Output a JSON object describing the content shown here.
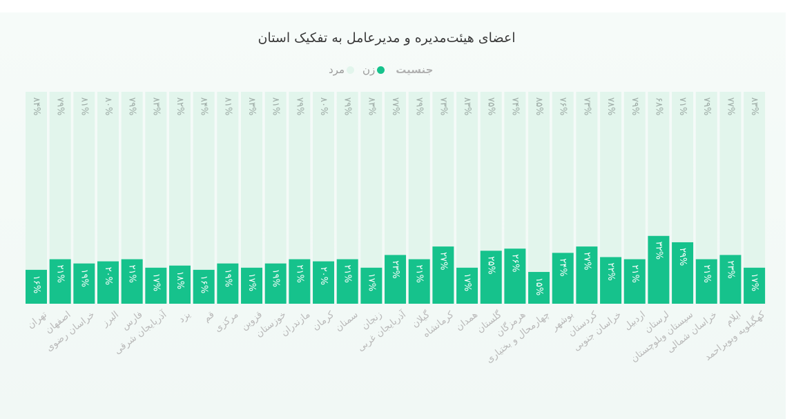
{
  "chart_data": {
    "type": "bar",
    "stacked": true,
    "orientation": "vertical",
    "title": "اعضای هیئت‌مدیره و مدیرعامل به تفکیک استان",
    "legend": {
      "title": "جنسیت",
      "placement": "top-center",
      "entries": [
        "زن",
        "مرد"
      ]
    },
    "categories": [
      "تهران",
      "اصفهان",
      "خراسان رضوی",
      "البرز",
      "فارس",
      "آذربایجان شرقی",
      "یزد",
      "قم",
      "مرکزی",
      "قزوین",
      "خوزستان",
      "مازندران",
      "کرمان",
      "سمنان",
      "زنجان",
      "آذربایجان غربی",
      "گیلان",
      "کرمانشاه",
      "همدان",
      "گلستان",
      "هرمزگان",
      "چهارمحال و بختیاری",
      "بوشهر",
      "کردستان",
      "خراسان جنوبی",
      "اردبیل",
      "لرستان",
      "سیستان وبلوچستان",
      "خراسان شمالی",
      "ایلام",
      "کهگیلویه وبویراحمد"
    ],
    "series": [
      {
        "name": "زن",
        "color": "#16c28c",
        "values": [
          16,
          21,
          19,
          20,
          21,
          17,
          18,
          16,
          19,
          17,
          19,
          21,
          20,
          21,
          17,
          23,
          21,
          27,
          17,
          25,
          26,
          15,
          24,
          27,
          22,
          21,
          32,
          29,
          21,
          23,
          17
        ],
        "labels": [
          "۱۶%",
          "۲۱%",
          "۱۹%",
          "۲۰%",
          "۲۱%",
          "۱۷%",
          "۱۸%",
          "۱۶%",
          "۱۹%",
          "۱۷%",
          "۱۹%",
          "۲۱%",
          "۲۰%",
          "۲۱%",
          "۱۷%",
          "۲۳%",
          "۲۱%",
          "۲۷%",
          "۱۷%",
          "۲۵%",
          "۲۶%",
          "۱۵%",
          "۲۴%",
          "۲۷%",
          "۲۲%",
          "۲۱%",
          "۳۲%",
          "۲۹%",
          "۲۱%",
          "۲۳%",
          "۱۷%"
        ]
      },
      {
        "name": "مرد",
        "color": "#e2f5ec",
        "values": [
          84,
          79,
          81,
          80,
          79,
          83,
          82,
          84,
          81,
          83,
          81,
          79,
          80,
          79,
          83,
          77,
          79,
          73,
          83,
          75,
          74,
          85,
          76,
          73,
          78,
          79,
          68,
          71,
          79,
          77,
          83
        ],
        "labels": [
          "۸۴%",
          "۷۹%",
          "۸۱%",
          "۸۰%",
          "۷۹%",
          "۸۳%",
          "۸۲%",
          "۸۴%",
          "۸۱%",
          "۸۳%",
          "۸۱%",
          "۷۹%",
          "۸۰%",
          "۷۹%",
          "۸۳%",
          "۷۷%",
          "۷۹%",
          "۷۳%",
          "۸۳%",
          "۷۵%",
          "۷۴%",
          "۸۵%",
          "۷۶%",
          "۷۳%",
          "۷۸%",
          "۷۹%",
          "۶۸%",
          "۷۱%",
          "۷۹%",
          "۷۷%",
          "۸۳%"
        ]
      }
    ],
    "ylim": [
      0,
      100
    ],
    "grid": false
  }
}
